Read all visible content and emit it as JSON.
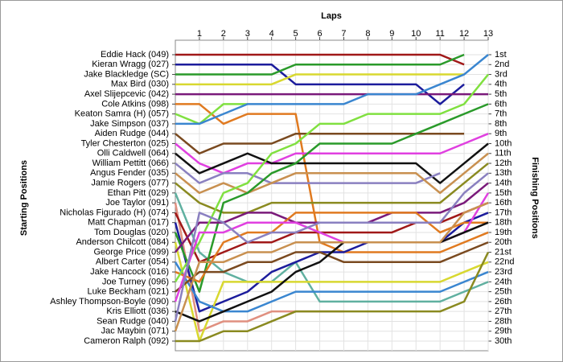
{
  "chart_data": {
    "type": "line",
    "x_label": "Laps",
    "y_label": "Starting Positions",
    "y2_label": "Finishing Positions",
    "x": [
      0,
      1,
      2,
      3,
      4,
      5,
      6,
      7,
      8,
      9,
      10,
      11,
      12,
      13
    ],
    "xlim": [
      0,
      13
    ],
    "xticks": [
      1,
      2,
      3,
      4,
      5,
      6,
      7,
      8,
      9,
      10,
      11,
      12,
      13
    ],
    "ylim": [
      1,
      30
    ],
    "yticks": [
      1,
      2,
      3,
      4,
      5,
      6,
      7,
      8,
      9,
      10,
      11,
      12,
      13,
      14,
      15,
      16,
      17,
      18,
      19,
      20,
      21,
      22,
      23,
      24,
      25,
      26,
      27,
      28,
      29,
      30
    ],
    "y2_labels": [
      "1st",
      "2nd",
      "3rd",
      "4th",
      "5th",
      "6th",
      "7th",
      "8th",
      "9th",
      "10th",
      "11th",
      "12th",
      "13th",
      "14th",
      "15th",
      "16th",
      "17th",
      "18th",
      "19th",
      "20th",
      "21st",
      "22nd",
      "23rd",
      "24th",
      "25th",
      "26th",
      "27th",
      "28th",
      "29th",
      "30th"
    ],
    "y_inverted": true,
    "grid": true,
    "series": [
      {
        "name": "Eddie Hack (049)",
        "color": "#a01818",
        "values": [
          1,
          1,
          1,
          1,
          1,
          1,
          1,
          1,
          1,
          1,
          1,
          1,
          2,
          null
        ]
      },
      {
        "name": "Kieran Wragg (027)",
        "color": "#1c1c9c",
        "values": [
          2,
          2,
          2,
          2,
          2,
          4,
          4,
          4,
          4,
          4,
          4,
          6,
          4,
          null
        ]
      },
      {
        "name": "Jake Blackledge (SC)",
        "color": "#2a9a2a",
        "values": [
          3,
          3,
          3,
          3,
          3,
          2,
          2,
          2,
          2,
          2,
          2,
          2,
          1,
          null
        ]
      },
      {
        "name": "Max Bird (030)",
        "color": "#d8d830",
        "values": [
          4,
          4,
          4,
          4,
          4,
          3,
          3,
          3,
          3,
          3,
          3,
          3,
          3,
          null
        ]
      },
      {
        "name": "Axel Slijepcevic (042)",
        "color": "#7a1a7a",
        "values": [
          5,
          5,
          5,
          5,
          5,
          5,
          5,
          5,
          5,
          5,
          5,
          5,
          5,
          5
        ]
      },
      {
        "name": "Cole Atkins (098)",
        "color": "#e07a20",
        "values": [
          6,
          6,
          8,
          7,
          7,
          7,
          20,
          21,
          21,
          21,
          21,
          21,
          20,
          19
        ]
      },
      {
        "name": "Keaton Samra (H) (057)",
        "color": "#80e040",
        "values": [
          7,
          8,
          6,
          6,
          null,
          null,
          null,
          null,
          null,
          null,
          null,
          null,
          null,
          null
        ]
      },
      {
        "name": "Jake Simpson (037)",
        "color": "#3a86d0",
        "values": [
          8,
          8,
          7,
          6,
          6,
          6,
          6,
          6,
          5,
          5,
          5,
          4,
          3,
          1
        ]
      },
      {
        "name": "Aiden Rudge (044)",
        "color": "#7a4a20",
        "values": [
          9,
          11,
          10,
          10,
          10,
          9,
          9,
          9,
          9,
          9,
          9,
          9,
          9,
          null
        ]
      },
      {
        "name": "Tyler Chesterton (025)",
        "color": "#e040e0",
        "values": [
          10,
          12,
          13,
          12,
          12,
          11,
          11,
          11,
          11,
          11,
          11,
          11,
          10,
          9
        ]
      },
      {
        "name": "Olli Caldwell (064)",
        "color": "#111111",
        "values": [
          11,
          13,
          12,
          11,
          12,
          12,
          12,
          12,
          12,
          12,
          12,
          14,
          12,
          10
        ]
      },
      {
        "name": "William Pettitt (066)",
        "color": "#8a80c0",
        "values": [
          12,
          14,
          13,
          13,
          14,
          14,
          14,
          14,
          14,
          14,
          14,
          13,
          null,
          null
        ]
      },
      {
        "name": "Angus Fender (035)",
        "color": "#c89050",
        "values": [
          13,
          15,
          14,
          15,
          14,
          13,
          13,
          13,
          13,
          13,
          13,
          15,
          13,
          11
        ]
      },
      {
        "name": "Jamie Rogers (077)",
        "color": "#8a8a20",
        "values": [
          14,
          16,
          17,
          17,
          16,
          16,
          16,
          16,
          16,
          16,
          16,
          16,
          14,
          12
        ]
      },
      {
        "name": "Ethan Pitt (029)",
        "color": "#60b0a0",
        "values": [
          15,
          21,
          23,
          24,
          24,
          22,
          26,
          26,
          26,
          26,
          26,
          26,
          25,
          24
        ]
      },
      {
        "name": "Joe Taylor (091)",
        "color": "#e09080",
        "values": [
          16,
          29,
          28,
          28,
          27,
          27,
          27,
          27,
          null,
          null,
          null,
          null,
          null,
          null
        ]
      },
      {
        "name": "Nicholas Figurado (H) (074)",
        "color": "#a01818",
        "values": [
          17,
          22,
          21,
          20,
          20,
          19,
          19,
          19,
          19,
          19,
          18,
          18,
          17,
          16
        ]
      },
      {
        "name": "Matt Chapman (017)",
        "color": "#1c1c9c",
        "values": [
          18,
          27,
          26,
          25,
          23,
          22,
          21,
          21,
          20,
          20,
          20,
          20,
          18,
          17
        ]
      },
      {
        "name": "Tom Douglas (020)",
        "color": "#2a9a2a",
        "values": [
          19,
          25,
          16,
          15,
          13,
          12,
          10,
          10,
          10,
          10,
          9,
          8,
          7,
          6
        ]
      },
      {
        "name": "Anderson Chilcott (084)",
        "color": "#d8d830",
        "values": [
          20,
          30,
          24,
          24,
          24,
          24,
          24,
          24,
          24,
          24,
          24,
          24,
          23,
          22
        ]
      },
      {
        "name": "George Price (099)",
        "color": "#7a1a7a",
        "values": [
          21,
          18,
          18,
          17,
          17,
          18,
          18,
          18,
          18,
          17,
          17,
          17,
          16,
          14
        ]
      },
      {
        "name": "Albert Carter (054)",
        "color": "#3a86d0",
        "values": [
          22,
          26,
          27,
          27,
          26,
          25,
          25,
          25,
          25,
          25,
          25,
          25,
          24,
          23
        ]
      },
      {
        "name": "Jake Hancock (016)",
        "color": "#e07a20",
        "values": [
          23,
          24,
          20,
          19,
          19,
          17,
          17,
          17,
          17,
          17,
          17,
          19,
          18,
          18
        ]
      },
      {
        "name": "Joe Turney (096)",
        "color": "#80e040",
        "values": [
          24,
          20,
          15,
          14,
          11,
          10,
          8,
          8,
          7,
          7,
          7,
          7,
          6,
          3
        ]
      },
      {
        "name": "Luke Beckham (021)",
        "color": "#7a4a20",
        "values": [
          25,
          23,
          23,
          22,
          22,
          21,
          21,
          22,
          22,
          22,
          22,
          22,
          21,
          20
        ]
      },
      {
        "name": "Ashley Thompson-Boyle (090)",
        "color": "#e040e0",
        "values": [
          26,
          19,
          19,
          18,
          18,
          18,
          19,
          20,
          20,
          20,
          20,
          20,
          19,
          15
        ]
      },
      {
        "name": "Kris Elliott (036)",
        "color": "#111111",
        "values": [
          27,
          28,
          27,
          26,
          25,
          23,
          22,
          20,
          20,
          20,
          20,
          20,
          19,
          18
        ]
      },
      {
        "name": "Sean Rudge (040)",
        "color": "#8a80c0",
        "values": [
          28,
          17,
          18,
          20,
          19,
          19,
          18,
          18,
          18,
          18,
          18,
          18,
          15,
          13
        ]
      },
      {
        "name": "Jac Maybin (071)",
        "color": "#c89050",
        "values": [
          29,
          22,
          22,
          21,
          21,
          20,
          20,
          20,
          20,
          20,
          20,
          20,
          17,
          16
        ]
      },
      {
        "name": "Cameron Ralph (092)",
        "color": "#8a8a20",
        "values": [
          30,
          30,
          29,
          29,
          28,
          27,
          27,
          27,
          27,
          27,
          27,
          27,
          26,
          21
        ]
      }
    ]
  }
}
